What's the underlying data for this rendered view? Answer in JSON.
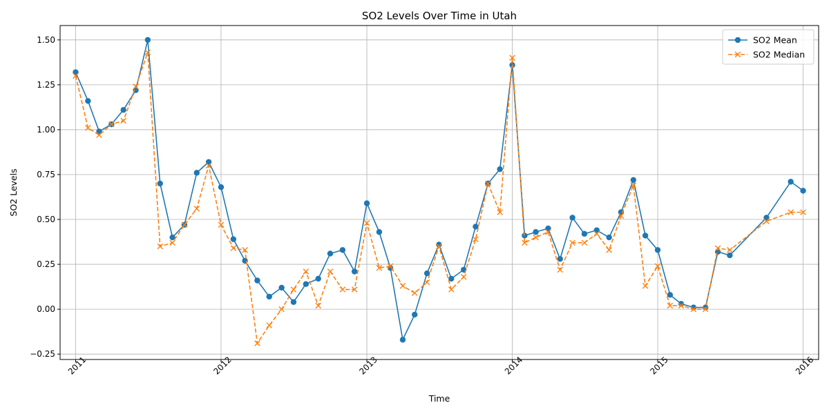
{
  "chart_data": {
    "type": "line",
    "title": "SO2 Levels Over Time in Utah",
    "xlabel": "Time",
    "ylabel": "SO2 Levels",
    "xlim": [
      "2010-11-23",
      "2016-02-09"
    ],
    "ylim": [
      -0.28,
      1.58
    ],
    "x_ticks": [
      "2011",
      "2012",
      "2013",
      "2014",
      "2015",
      "2016"
    ],
    "y_ticks": [
      "−0.25",
      "0.00",
      "0.25",
      "0.50",
      "0.75",
      "1.00",
      "1.25",
      "1.50"
    ],
    "grid": true,
    "legend": "top-right",
    "colors": {
      "mean": "#1f77b4",
      "median": "#ff7f0e"
    },
    "series": [
      {
        "name": "SO2 Mean",
        "marker": "circle",
        "style": "solid",
        "points": [
          [
            "2011-01-01",
            1.32
          ],
          [
            "2011-02-01",
            1.16
          ],
          [
            "2011-03-01",
            0.99
          ],
          [
            "2011-04-01",
            1.03
          ],
          [
            "2011-05-01",
            1.11
          ],
          [
            "2011-06-01",
            1.22
          ],
          [
            "2011-07-01",
            1.5
          ],
          [
            "2011-08-01",
            0.7
          ],
          [
            "2011-09-01",
            0.4
          ],
          [
            "2011-10-01",
            0.47
          ],
          [
            "2011-11-01",
            0.76
          ],
          [
            "2011-12-01",
            0.82
          ],
          [
            "2012-01-01",
            0.68
          ],
          [
            "2012-02-01",
            0.39
          ],
          [
            "2012-03-01",
            0.27
          ],
          [
            "2012-04-01",
            0.16
          ],
          [
            "2012-05-01",
            0.07
          ],
          [
            "2012-06-01",
            0.12
          ],
          [
            "2012-07-01",
            0.04
          ],
          [
            "2012-08-01",
            0.14
          ],
          [
            "2012-09-01",
            0.17
          ],
          [
            "2012-10-01",
            0.31
          ],
          [
            "2012-11-01",
            0.33
          ],
          [
            "2012-12-01",
            0.21
          ],
          [
            "2013-01-01",
            0.59
          ],
          [
            "2013-02-01",
            0.43
          ],
          [
            "2013-03-01",
            0.23
          ],
          [
            "2013-04-01",
            -0.17
          ],
          [
            "2013-05-01",
            -0.03
          ],
          [
            "2013-06-01",
            0.2
          ],
          [
            "2013-07-01",
            0.36
          ],
          [
            "2013-08-01",
            0.17
          ],
          [
            "2013-09-01",
            0.22
          ],
          [
            "2013-10-01",
            0.46
          ],
          [
            "2013-11-01",
            0.7
          ],
          [
            "2013-12-01",
            0.78
          ],
          [
            "2014-01-01",
            1.36
          ],
          [
            "2014-02-01",
            0.41
          ],
          [
            "2014-03-01",
            0.43
          ],
          [
            "2014-04-01",
            0.45
          ],
          [
            "2014-05-01",
            0.28
          ],
          [
            "2014-06-01",
            0.51
          ],
          [
            "2014-07-01",
            0.42
          ],
          [
            "2014-08-01",
            0.44
          ],
          [
            "2014-09-01",
            0.4
          ],
          [
            "2014-10-01",
            0.54
          ],
          [
            "2014-11-01",
            0.72
          ],
          [
            "2014-12-01",
            0.41
          ],
          [
            "2015-01-01",
            0.33
          ],
          [
            "2015-02-01",
            0.08
          ],
          [
            "2015-03-01",
            0.03
          ],
          [
            "2015-04-01",
            0.01
          ],
          [
            "2015-05-01",
            0.01
          ],
          [
            "2015-06-01",
            0.32
          ],
          [
            "2015-07-01",
            0.3
          ],
          [
            "2015-10-01",
            0.51
          ],
          [
            "2015-12-01",
            0.71
          ],
          [
            "2016-01-01",
            0.66
          ]
        ]
      },
      {
        "name": "SO2 Median",
        "marker": "x",
        "style": "dashed",
        "points": [
          [
            "2011-01-01",
            1.3
          ],
          [
            "2011-02-01",
            1.01
          ],
          [
            "2011-03-01",
            0.97
          ],
          [
            "2011-04-01",
            1.03
          ],
          [
            "2011-05-01",
            1.05
          ],
          [
            "2011-06-01",
            1.24
          ],
          [
            "2011-07-01",
            1.43
          ],
          [
            "2011-08-01",
            0.35
          ],
          [
            "2011-09-01",
            0.37
          ],
          [
            "2011-10-01",
            0.47
          ],
          [
            "2011-11-01",
            0.56
          ],
          [
            "2011-12-01",
            0.8
          ],
          [
            "2012-01-01",
            0.47
          ],
          [
            "2012-02-01",
            0.34
          ],
          [
            "2012-03-01",
            0.33
          ],
          [
            "2012-04-01",
            -0.19
          ],
          [
            "2012-05-01",
            -0.09
          ],
          [
            "2012-06-01",
            0.0
          ],
          [
            "2012-07-01",
            0.11
          ],
          [
            "2012-08-01",
            0.21
          ],
          [
            "2012-09-01",
            0.02
          ],
          [
            "2012-10-01",
            0.21
          ],
          [
            "2012-11-01",
            0.11
          ],
          [
            "2012-12-01",
            0.11
          ],
          [
            "2013-01-01",
            0.48
          ],
          [
            "2013-02-01",
            0.23
          ],
          [
            "2013-03-01",
            0.24
          ],
          [
            "2013-04-01",
            0.13
          ],
          [
            "2013-05-01",
            0.09
          ],
          [
            "2013-06-01",
            0.15
          ],
          [
            "2013-07-01",
            0.35
          ],
          [
            "2013-08-01",
            0.11
          ],
          [
            "2013-09-01",
            0.18
          ],
          [
            "2013-10-01",
            0.39
          ],
          [
            "2013-11-01",
            0.7
          ],
          [
            "2013-12-01",
            0.54
          ],
          [
            "2014-01-01",
            1.4
          ],
          [
            "2014-02-01",
            0.37
          ],
          [
            "2014-03-01",
            0.4
          ],
          [
            "2014-04-01",
            0.43
          ],
          [
            "2014-05-01",
            0.22
          ],
          [
            "2014-06-01",
            0.37
          ],
          [
            "2014-07-01",
            0.37
          ],
          [
            "2014-08-01",
            0.42
          ],
          [
            "2014-09-01",
            0.33
          ],
          [
            "2014-10-01",
            0.52
          ],
          [
            "2014-11-01",
            0.69
          ],
          [
            "2014-12-01",
            0.13
          ],
          [
            "2015-01-01",
            0.24
          ],
          [
            "2015-02-01",
            0.02
          ],
          [
            "2015-03-01",
            0.02
          ],
          [
            "2015-04-01",
            0.0
          ],
          [
            "2015-05-01",
            0.0
          ],
          [
            "2015-06-01",
            0.34
          ],
          [
            "2015-07-01",
            0.33
          ],
          [
            "2015-10-01",
            0.49
          ],
          [
            "2015-12-01",
            0.54
          ],
          [
            "2016-01-01",
            0.54
          ]
        ]
      }
    ]
  }
}
